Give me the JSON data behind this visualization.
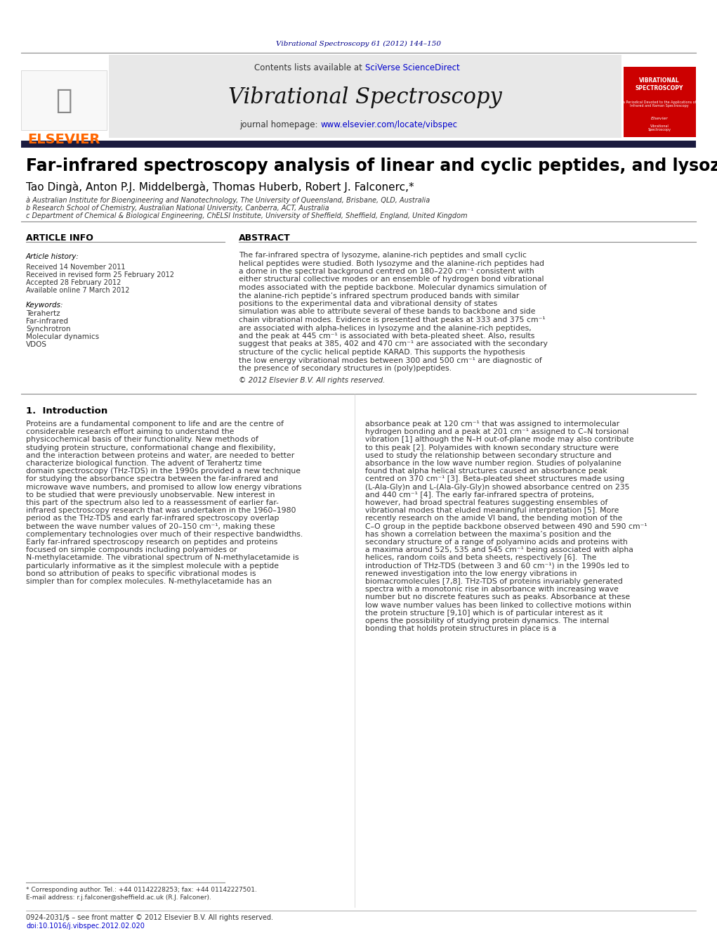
{
  "journal_ref": "Vibrational Spectroscopy 61 (2012) 144–150",
  "journal_name": "Vibrational Spectroscopy",
  "contents_line": "Contents lists available at SciVerse ScienceDirect",
  "homepage_line": "journal homepage: www.elsevier.com/locate/vibspec",
  "title": "Far-infrared spectroscopy analysis of linear and cyclic peptides, and lysozyme",
  "authors": "Tao Dingà, Anton P.J. Middelbergà, Thomas Huberb, Robert J. Falconerc,*",
  "affil_a": "à Australian Institute for Bioengineering and Nanotechnology, The University of Queensland, Brisbane, QLD, Australia",
  "affil_b": "b Research School of Chemistry, Australian National University, Canberra, ACT, Australia",
  "affil_c": "c Department of Chemical & Biological Engineering, ChELSI Institute, University of Sheffield, Sheffield, England, United Kingdom",
  "article_info_title": "ARTICLE INFO",
  "abstract_title": "ABSTRACT",
  "article_history_title": "Article history:",
  "received": "Received 14 November 2011",
  "received_revised": "Received in revised form 25 February 2012",
  "accepted": "Accepted 28 February 2012",
  "available": "Available online 7 March 2012",
  "keywords_title": "Keywords:",
  "keywords": [
    "Terahertz",
    "Far-infrared",
    "Synchrotron",
    "Molecular dynamics",
    "VDOS"
  ],
  "abstract_text": "The far-infrared spectra of lysozyme, alanine-rich peptides and small cyclic helical peptides were studied. Both lysozyme and the alanine-rich peptides had a dome in the spectral background centred on 180–220 cm⁻¹ consistent with either structural collective modes or an ensemble of hydrogen bond vibrational modes associated with the peptide backbone. Molecular dynamics simulation of the alanine-rich peptide’s infrared spectrum produced bands with similar positions to the experimental data and vibrational density of states simulation was able to attribute several of these bands to backbone and side chain vibrational modes. Evidence is presented that peaks at 333 and 375 cm⁻¹ are associated with alpha-helices in lysozyme and the alanine-rich peptides, and the peak at 445 cm⁻¹ is associated with beta-pleated sheet. Also, results suggest that peaks at 385, 402 and 470 cm⁻¹ are associated with the secondary structure of the cyclic helical peptide KARAD. This supports the hypothesis the low energy vibrational modes between 300 and 500 cm⁻¹ are diagnostic of the presence of secondary structures in (poly)peptides.",
  "copyright": "© 2012 Elsevier B.V. All rights reserved.",
  "intro_title": "1.  Introduction",
  "intro_text_col1": "Proteins are a fundamental component to life and are the centre of considerable research effort aiming to understand the physicochemical basis of their functionality. New methods of studying protein structure, conformational change and flexibility, and the interaction between proteins and water, are needed to better characterize biological function. The advent of Terahertz time domain spectroscopy (THz-TDS) in the 1990s provided a new technique for studying the absorbance spectra between the far-infrared and microwave wave numbers, and promised to allow low energy vibrations to be studied that were previously unobservable. New interest in this part of the spectrum also led to a reassessment of earlier far-infrared spectroscopy research that was undertaken in the 1960–1980 period as the THz-TDS and early far-infrared spectroscopy overlap between the wave number values of 20–150 cm⁻¹, making these complementary technologies over much of their respective bandwidths.\n\nEarly far-infrared spectroscopy research on peptides and proteins focused on simple compounds including polyamides or N-methylacetamide. The vibrational spectrum of N-methylacetamide is particularly informative as it the simplest molecule with a peptide bond so attribution of peaks to specific vibrational modes is simpler than for complex molecules. N-methylacetamide has an",
  "intro_text_col2": "absorbance peak at 120 cm⁻¹ that was assigned to intermolecular hydrogen bonding and a peak at 201 cm⁻¹ assigned to C–N torsional vibration [1] although the N–H out-of-plane mode may also contribute to this peak [2]. Polyamides with known secondary structure were used to study the relationship between secondary structure and absorbance in the low wave number region. Studies of polyalanine found that alpha helical structures caused an absorbance peak centred on 370 cm⁻¹ [3]. Beta-pleated sheet structures made using (L-Ala-Gly)n and L-(Ala-Gly-Gly)n showed absorbance centred on 235 and 440 cm⁻¹ [4]. The early far-infrared spectra of proteins, however, had broad spectral features suggesting ensembles of vibrational modes that eluded meaningful interpretation [5]. More recently research on the amide VI band, the bending motion of the C–O group in the peptide backbone observed between 490 and 590 cm⁻¹ has shown a correlation between the maxima’s position and the secondary structure of a range of polyamino acids and proteins with a maxima around 525, 535 and 545 cm⁻¹ being associated with alpha helices, random coils and beta sheets, respectively [6].\n\nThe introduction of THz-TDS (between 3 and 60 cm⁻¹) in the 1990s led to renewed investigation into the low energy vibrations in biomacromolecules [7,8]. THz-TDS of proteins invariably generated spectra with a monotonic rise in absorbance with increasing wave number but no discrete features such as peaks. Absorbance at these low wave number values has been linked to collective motions within the protein structure [9,10] which is of particular interest as it opens the possibility of studying protein dynamics. The internal bonding that holds protein structures in place is a",
  "footnote_corr": "* Corresponding author. Tel.: +44 01142228253; fax: +44 01142227501.",
  "footnote_email": "E-mail address: r.j.falconer@sheffield.ac.uk (R.J. Falconer).",
  "footnote_issn": "0924-2031/$ – see front matter © 2012 Elsevier B.V. All rights reserved.",
  "footnote_doi": "doi:10.1016/j.vibspec.2012.02.020",
  "colors": {
    "dark_navy": "#00008B",
    "blue_link": "#0000CD",
    "elsevier_orange": "#FF6600",
    "black": "#000000",
    "dark_gray": "#333333",
    "header_bg": "#E8E8E8",
    "divider_bar": "#1a1a2e",
    "red_cover": "#CC0000",
    "light_gray": "#F0F0F0"
  }
}
